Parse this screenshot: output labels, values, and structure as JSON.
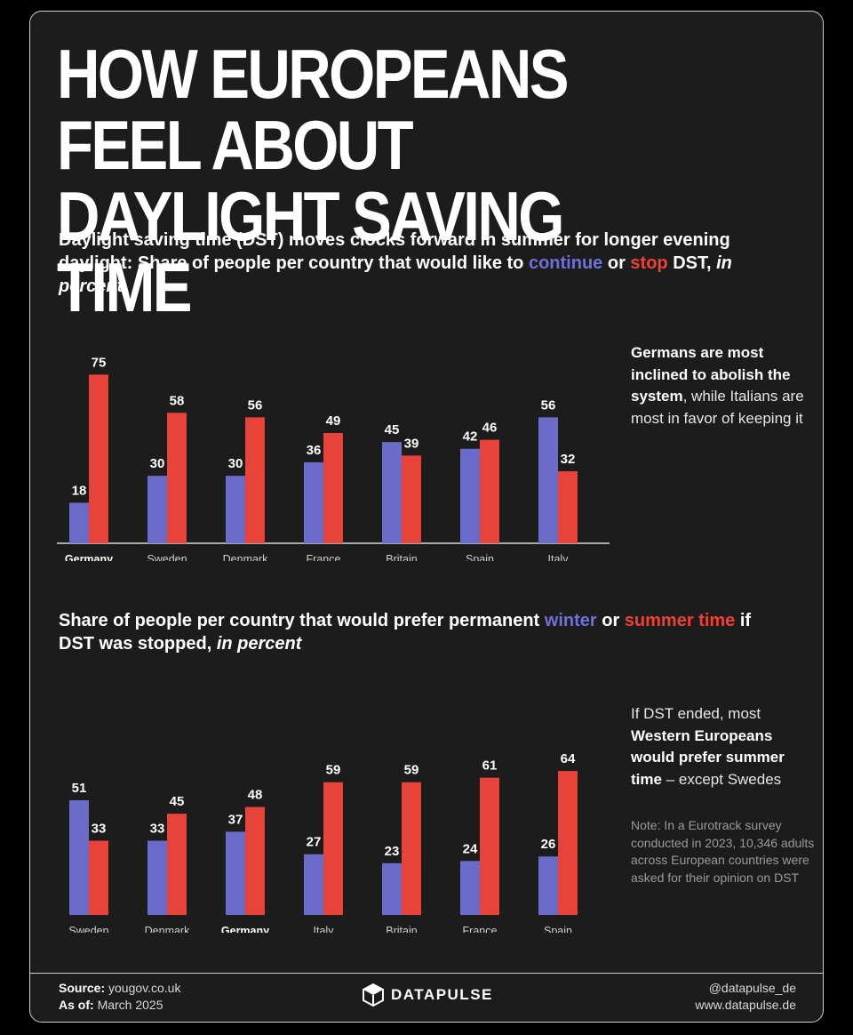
{
  "title": "HOW EUROPEANS FEEL ABOUT DAYLIGHT SAVING TIME",
  "colors": {
    "blue": "#6b6bc9",
    "red": "#e8433a",
    "background": "#1c1c1c"
  },
  "subtitle1": {
    "line": "Daylight saving time (DST) moves clocks forward in summer for longer evening daylight: Share of people per country that would like to",
    "blue_word": "continue",
    "or": "or",
    "red_word": "stop",
    "after": "DST,",
    "unit": "in percent"
  },
  "subtitle2": {
    "line": "Share of people per country that would prefer permanent",
    "blue_word": "winter",
    "or": "or",
    "red_word": "summer time",
    "after": "if DST was stopped,",
    "unit": "in percent"
  },
  "note1": {
    "bold": "Germans are most inclined to abolish the system",
    "rest": ", while Italians are most in favor of keeping it"
  },
  "note2": {
    "start": "If DST ended, most",
    "bold": "Western Europeans would prefer summer time",
    "rest": "– except Swedes"
  },
  "note3": "Note: In a Eurotrack survey conducted in 2023, 10,346 adults across European countries were asked for their opinion on DST",
  "footer": {
    "source_label": "Source:",
    "source": "yougov.co.uk",
    "asof_label": "As of:",
    "asof": "March 2025",
    "brand": "DATAPULSE",
    "handle": "@datapulse_de",
    "website": "www.datapulse.de"
  },
  "chart_data": [
    {
      "type": "bar",
      "categories": [
        "Germany",
        "Sweden",
        "Denmark",
        "France",
        "Britain",
        "Spain",
        "Italy"
      ],
      "highlight": "Germany",
      "series": [
        {
          "name": "continue",
          "values": [
            18,
            30,
            30,
            36,
            45,
            42,
            56
          ]
        },
        {
          "name": "stop",
          "values": [
            75,
            58,
            56,
            49,
            39,
            46,
            32
          ]
        }
      ],
      "ylim": [
        0,
        80
      ]
    },
    {
      "type": "bar",
      "categories": [
        "Sweden",
        "Denmark",
        "Germany",
        "Italy",
        "Britain",
        "France",
        "Spain"
      ],
      "highlight": "Germany",
      "series": [
        {
          "name": "winter",
          "values": [
            51,
            33,
            37,
            27,
            23,
            24,
            26
          ]
        },
        {
          "name": "summer time",
          "values": [
            33,
            45,
            48,
            59,
            59,
            61,
            64
          ]
        }
      ],
      "ylim": [
        0,
        70
      ]
    }
  ]
}
